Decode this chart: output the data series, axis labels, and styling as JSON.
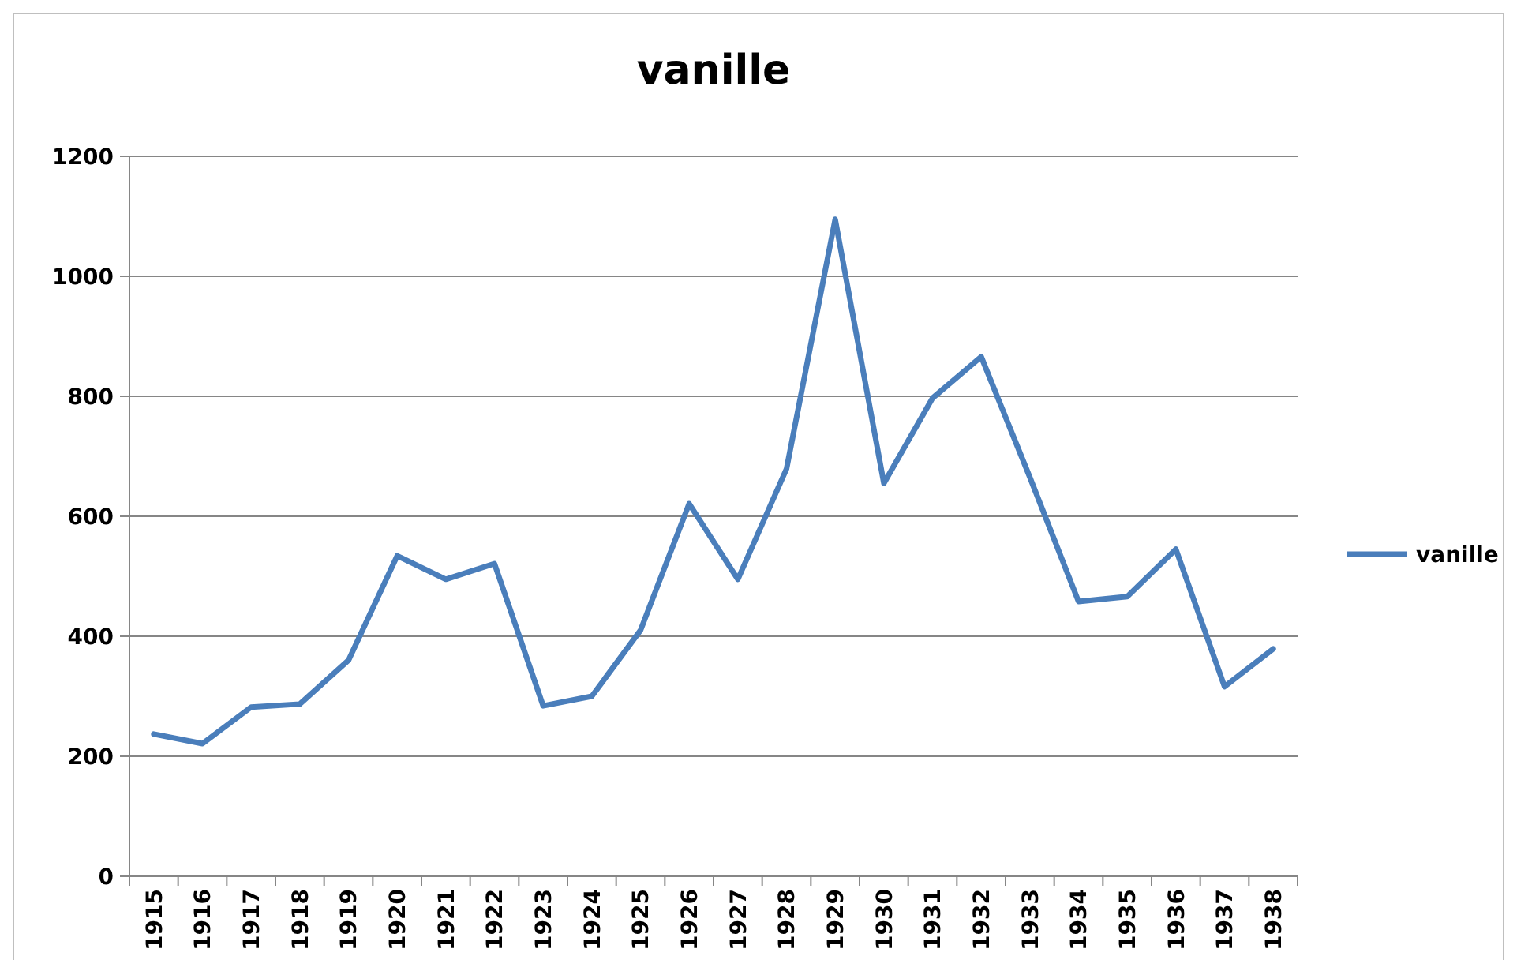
{
  "chart_data": {
    "type": "line",
    "title": "vanille",
    "categories": [
      "1915",
      "1916",
      "1917",
      "1918",
      "1919",
      "1920",
      "1921",
      "1922",
      "1923",
      "1924",
      "1925",
      "1926",
      "1927",
      "1928",
      "1929",
      "1930",
      "1931",
      "1932",
      "1933",
      "1934",
      "1935",
      "1936",
      "1937",
      "1938"
    ],
    "series": [
      {
        "name": "vanille",
        "color": "#4a7ebb",
        "values": [
          237,
          221,
          282,
          287,
          360,
          534,
          495,
          521,
          284,
          300,
          410,
          621,
          495,
          679,
          1095,
          655,
          797,
          866,
          665,
          458,
          466,
          545,
          316,
          379
        ]
      }
    ],
    "ylim": [
      0,
      1200
    ],
    "yticks": [
      0,
      200,
      400,
      600,
      800,
      1000,
      1200
    ],
    "grid": "y",
    "legend": "right",
    "marker": "none",
    "line_style": "solid"
  }
}
